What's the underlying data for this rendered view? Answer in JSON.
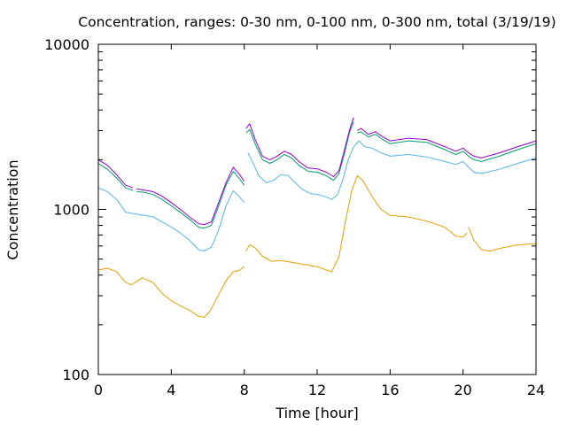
{
  "chart_data": {
    "type": "line",
    "title": "Concentration, ranges: 0-30 nm, 0-100 nm, 0-300 nm, total (3/19/19)",
    "xlabel": "Time [hour]",
    "ylabel": "Concentration",
    "xlim": [
      0,
      24
    ],
    "ylim": [
      100,
      10000
    ],
    "yscale": "log",
    "grid": false,
    "x_ticks": [
      "0",
      "4",
      "8",
      "12",
      "16",
      "20",
      "24"
    ],
    "y_ticks": [
      "100",
      "1000",
      "10000"
    ],
    "series": [
      {
        "color": "#e69f00",
        "points": [
          [
            0,
            430
          ],
          [
            0.5,
            440
          ],
          [
            1,
            420
          ],
          [
            1.5,
            360
          ],
          [
            1.8,
            350
          ],
          [
            2,
            360
          ],
          [
            2.4,
            385
          ],
          [
            3,
            360
          ],
          [
            3.5,
            310
          ],
          [
            4,
            280
          ],
          [
            4.5,
            260
          ],
          [
            5,
            245
          ],
          [
            5.5,
            225
          ],
          [
            5.8,
            222
          ],
          [
            6.1,
            240
          ],
          [
            6.5,
            290
          ],
          [
            7,
            370
          ],
          [
            7.4,
            420
          ],
          [
            7.7,
            425
          ],
          [
            8,
            450
          ],
          null,
          [
            8.1,
            560
          ],
          [
            8.3,
            610
          ],
          [
            8.6,
            585
          ],
          [
            9,
            520
          ],
          [
            9.5,
            485
          ],
          [
            10,
            490
          ],
          [
            10.5,
            480
          ],
          [
            11,
            470
          ],
          [
            11.5,
            460
          ],
          [
            12,
            450
          ],
          [
            12.5,
            430
          ],
          [
            12.8,
            420
          ],
          [
            13.2,
            520
          ],
          [
            13.6,
            900
          ],
          [
            13.9,
            1300
          ],
          [
            14.2,
            1600
          ],
          [
            14.5,
            1500
          ],
          [
            15,
            1200
          ],
          [
            15.5,
            1000
          ],
          [
            16,
            920
          ],
          [
            17,
            900
          ],
          [
            18,
            850
          ],
          [
            19,
            780
          ],
          [
            19.6,
            690
          ],
          [
            20,
            680
          ],
          [
            20.2,
            720
          ],
          null,
          [
            20.3,
            780
          ],
          [
            20.6,
            650
          ],
          [
            21,
            570
          ],
          [
            21.5,
            560
          ],
          [
            22,
            580
          ],
          [
            23,
            610
          ],
          [
            24,
            620
          ]
        ]
      },
      {
        "color": "#56b4e9",
        "points": [
          [
            0,
            1350
          ],
          [
            0.5,
            1280
          ],
          [
            1,
            1150
          ],
          [
            1.5,
            960
          ],
          [
            2,
            940
          ],
          [
            2.5,
            920
          ],
          [
            3,
            900
          ],
          [
            3.5,
            840
          ],
          [
            4,
            780
          ],
          [
            4.5,
            720
          ],
          [
            5,
            650
          ],
          [
            5.5,
            570
          ],
          [
            5.8,
            560
          ],
          [
            6.2,
            590
          ],
          [
            6.6,
            750
          ],
          [
            7,
            1050
          ],
          [
            7.4,
            1300
          ],
          [
            7.7,
            1200
          ],
          [
            8,
            1100
          ],
          null,
          [
            8.2,
            2200
          ],
          [
            8.4,
            2000
          ],
          [
            8.8,
            1600
          ],
          [
            9.2,
            1450
          ],
          [
            9.6,
            1500
          ],
          [
            10,
            1620
          ],
          [
            10.4,
            1600
          ],
          [
            10.8,
            1450
          ],
          [
            11.2,
            1320
          ],
          [
            11.6,
            1250
          ],
          [
            12,
            1230
          ],
          [
            12.4,
            1200
          ],
          [
            12.8,
            1150
          ],
          [
            13.1,
            1220
          ],
          [
            13.4,
            1500
          ],
          [
            13.7,
            2000
          ],
          [
            14,
            2400
          ],
          [
            14.3,
            2600
          ],
          [
            14.6,
            2400
          ],
          [
            15,
            2350
          ],
          [
            15.5,
            2200
          ],
          [
            16,
            2100
          ],
          [
            17,
            2150
          ],
          [
            18,
            2080
          ],
          [
            19,
            1950
          ],
          [
            19.6,
            1870
          ],
          [
            20,
            1950
          ],
          [
            20.3,
            1800
          ],
          [
            20.6,
            1680
          ],
          [
            21,
            1650
          ],
          [
            22,
            1750
          ],
          [
            23,
            1900
          ],
          [
            24,
            2050
          ]
        ]
      },
      {
        "color": "#009e73",
        "points": [
          [
            0,
            1900
          ],
          [
            0.5,
            1750
          ],
          [
            1,
            1550
          ],
          [
            1.5,
            1350
          ],
          [
            1.9,
            1300
          ],
          null,
          [
            2.1,
            1280
          ],
          [
            2.5,
            1270
          ],
          [
            3,
            1230
          ],
          [
            3.5,
            1150
          ],
          [
            4,
            1050
          ],
          [
            4.5,
            960
          ],
          [
            5,
            870
          ],
          [
            5.5,
            780
          ],
          [
            5.8,
            770
          ],
          [
            6.2,
            800
          ],
          [
            6.6,
            1050
          ],
          [
            7,
            1400
          ],
          [
            7.4,
            1700
          ],
          [
            7.7,
            1550
          ],
          [
            8,
            1400
          ],
          null,
          [
            8.1,
            2900
          ],
          [
            8.3,
            3050
          ],
          [
            8.6,
            2500
          ],
          [
            9,
            2000
          ],
          [
            9.4,
            1900
          ],
          [
            9.8,
            2000
          ],
          [
            10.2,
            2150
          ],
          [
            10.6,
            2050
          ],
          [
            11,
            1850
          ],
          [
            11.5,
            1700
          ],
          [
            12,
            1680
          ],
          [
            12.5,
            1600
          ],
          [
            12.9,
            1500
          ],
          [
            13.2,
            1650
          ],
          [
            13.5,
            2200
          ],
          [
            13.8,
            3000
          ],
          [
            14,
            3400
          ],
          null,
          [
            14.2,
            2900
          ],
          [
            14.4,
            2950
          ],
          [
            14.8,
            2750
          ],
          [
            15.2,
            2850
          ],
          [
            15.6,
            2650
          ],
          [
            16,
            2500
          ],
          [
            17,
            2600
          ],
          [
            18,
            2550
          ],
          [
            19,
            2300
          ],
          [
            19.6,
            2150
          ],
          [
            20,
            2250
          ],
          [
            20.3,
            2100
          ],
          [
            20.6,
            2000
          ],
          [
            21,
            1950
          ],
          [
            22,
            2100
          ],
          [
            23,
            2300
          ],
          [
            24,
            2500
          ]
        ]
      },
      {
        "color": "#9400d3",
        "points": [
          [
            0,
            2000
          ],
          [
            0.5,
            1850
          ],
          [
            1,
            1620
          ],
          [
            1.5,
            1400
          ],
          [
            1.9,
            1350
          ],
          null,
          [
            2.1,
            1330
          ],
          [
            2.5,
            1310
          ],
          [
            3,
            1280
          ],
          [
            3.5,
            1200
          ],
          [
            4,
            1100
          ],
          [
            4.5,
            1000
          ],
          [
            5,
            900
          ],
          [
            5.5,
            820
          ],
          [
            5.8,
            810
          ],
          [
            6.2,
            840
          ],
          [
            6.6,
            1100
          ],
          [
            7,
            1450
          ],
          [
            7.4,
            1800
          ],
          [
            7.7,
            1650
          ],
          [
            8,
            1480
          ],
          null,
          [
            8.1,
            3100
          ],
          [
            8.3,
            3300
          ],
          [
            8.6,
            2650
          ],
          [
            9,
            2100
          ],
          [
            9.4,
            2000
          ],
          [
            9.8,
            2100
          ],
          [
            10.2,
            2250
          ],
          [
            10.6,
            2150
          ],
          [
            11,
            1950
          ],
          [
            11.5,
            1780
          ],
          [
            12,
            1760
          ],
          [
            12.5,
            1680
          ],
          [
            12.9,
            1580
          ],
          [
            13.2,
            1720
          ],
          [
            13.5,
            2300
          ],
          [
            13.8,
            3100
          ],
          [
            14,
            3600
          ],
          null,
          [
            14.2,
            3000
          ],
          [
            14.4,
            3100
          ],
          [
            14.8,
            2850
          ],
          [
            15.2,
            2950
          ],
          [
            15.6,
            2750
          ],
          [
            16,
            2600
          ],
          [
            17,
            2700
          ],
          [
            18,
            2650
          ],
          [
            19,
            2400
          ],
          [
            19.6,
            2250
          ],
          [
            20,
            2350
          ],
          [
            20.3,
            2200
          ],
          [
            20.6,
            2100
          ],
          [
            21,
            2050
          ],
          [
            22,
            2200
          ],
          [
            23,
            2400
          ],
          [
            24,
            2600
          ]
        ]
      }
    ]
  }
}
